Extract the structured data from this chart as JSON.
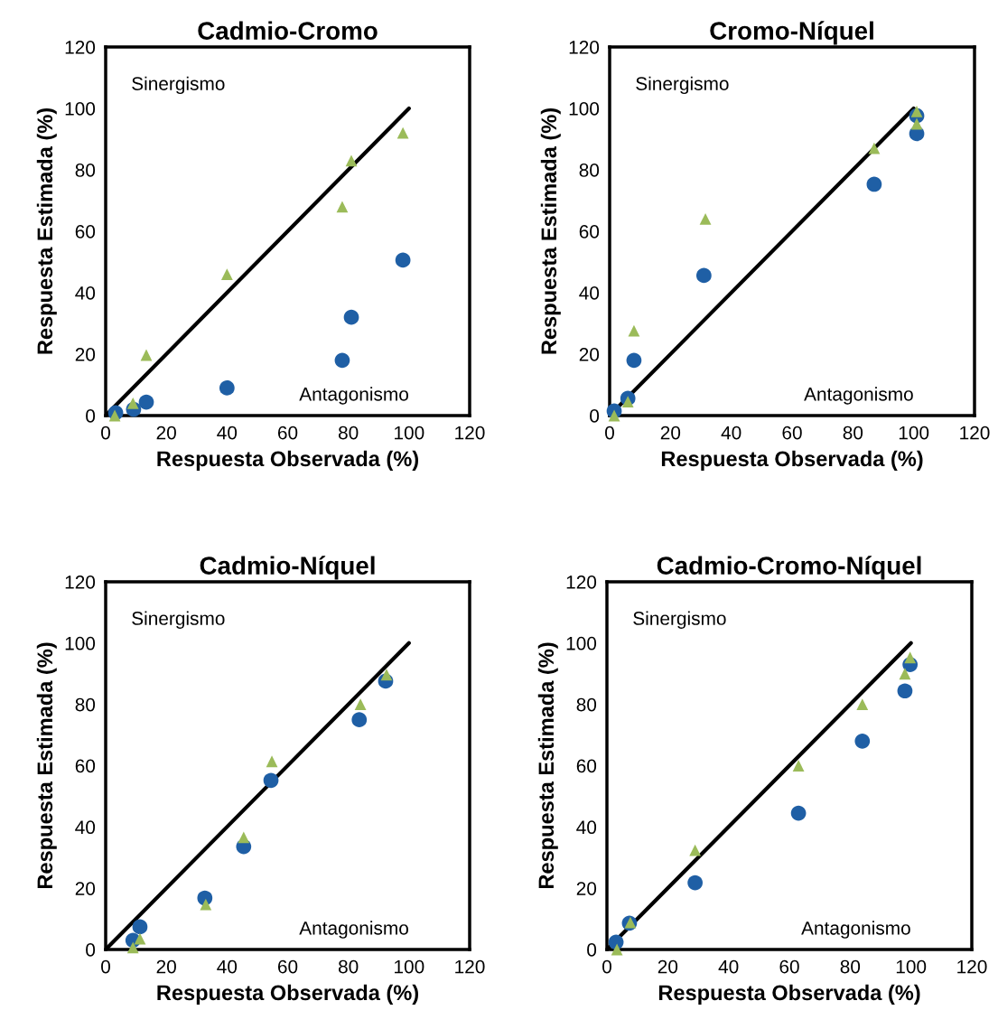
{
  "chart_data": [
    {
      "type": "scatter",
      "title": "Cadmio-Cromo",
      "xlabel": "Respuesta Observada (%)",
      "ylabel": "Respuesta Estimada (%)",
      "xlim": [
        0,
        120
      ],
      "ylim": [
        0,
        120
      ],
      "xticks": [
        0,
        20,
        40,
        60,
        80,
        100,
        120
      ],
      "yticks": [
        0,
        20,
        40,
        60,
        80,
        100,
        120
      ],
      "grid": false,
      "legend": false,
      "annotations": [
        "Sinergismo",
        "Antagonismo"
      ],
      "series": [
        {
          "type": "line",
          "color": "#000000",
          "x": [
            0,
            100
          ],
          "values": [
            0,
            100
          ],
          "marker": "none",
          "line_style": "solid"
        },
        {
          "type": "scatter",
          "color": "#9bbb59",
          "marker": "triangle",
          "x": [
            3,
            9,
            13.4,
            40,
            78,
            81,
            98
          ],
          "values": [
            0,
            4,
            19.7,
            46,
            68,
            83,
            92
          ]
        },
        {
          "type": "scatter",
          "color": "#1f5fa5",
          "marker": "circle",
          "x": [
            3.3,
            9.2,
            13.4,
            40,
            78,
            81,
            98
          ],
          "values": [
            0.9,
            2,
            4.4,
            9,
            18,
            32,
            50.6
          ]
        }
      ]
    },
    {
      "type": "scatter",
      "title": "Cromo-Níquel",
      "xlabel": "Respuesta Observada (%)",
      "ylabel": "Respuesta Estimada (%)",
      "xlim": [
        0,
        120
      ],
      "ylim": [
        0,
        120
      ],
      "xticks": [
        0,
        20,
        40,
        60,
        80,
        100,
        120
      ],
      "yticks": [
        0,
        20,
        40,
        60,
        80,
        100,
        120
      ],
      "grid": false,
      "legend": false,
      "annotations": [
        "Sinergismo",
        "Antagonismo"
      ],
      "series": [
        {
          "type": "line",
          "color": "#000000",
          "x": [
            0,
            100
          ],
          "values": [
            0,
            100
          ],
          "marker": "none",
          "line_style": "solid"
        },
        {
          "type": "scatter",
          "color": "#9bbb59",
          "marker": "triangle",
          "x": [
            1.5,
            6,
            8,
            31.5,
            87,
            101,
            101
          ],
          "values": [
            0,
            4.5,
            27.6,
            64,
            87,
            99,
            95
          ]
        },
        {
          "type": "scatter",
          "color": "#1f5fa5",
          "marker": "circle",
          "x": [
            1.5,
            6,
            8,
            31,
            87,
            101,
            101
          ],
          "values": [
            1.5,
            5.6,
            18,
            45.6,
            75.3,
            97.6,
            91.8
          ]
        }
      ]
    },
    {
      "type": "scatter",
      "title": "Cadmio-Níquel",
      "xlabel": "Respuesta Observada (%)",
      "ylabel": "Respuesta Estimada (%)",
      "xlim": [
        0,
        120
      ],
      "ylim": [
        0,
        120
      ],
      "xticks": [
        0,
        20,
        40,
        60,
        80,
        100,
        120
      ],
      "yticks": [
        0,
        20,
        40,
        60,
        80,
        100,
        120
      ],
      "grid": false,
      "legend": false,
      "annotations": [
        "Sinergismo",
        "Antagonismo"
      ],
      "series": [
        {
          "type": "line",
          "color": "#000000",
          "x": [
            0,
            100
          ],
          "values": [
            0,
            100
          ],
          "marker": "none",
          "line_style": "solid"
        },
        {
          "type": "scatter",
          "color": "#9bbb59",
          "marker": "triangle",
          "x": [
            9,
            11.3,
            33,
            45.5,
            54.8,
            84,
            92.6
          ],
          "values": [
            0.6,
            3.5,
            14.7,
            36.6,
            61.4,
            80,
            89.7
          ]
        },
        {
          "type": "scatter",
          "color": "#1f5fa5",
          "marker": "circle",
          "x": [
            9,
            11.3,
            32.7,
            45.5,
            54.5,
            83.6,
            92.3
          ],
          "values": [
            3,
            7.4,
            16.8,
            33.6,
            55.2,
            75,
            87.6
          ]
        }
      ]
    },
    {
      "type": "scatter",
      "title": "Cadmio-Cromo-Níquel",
      "xlabel": "Respuesta Observada (%)",
      "ylabel": "Respuesta Estimada (%)",
      "xlim": [
        0,
        120
      ],
      "ylim": [
        0,
        120
      ],
      "xticks": [
        0,
        20,
        40,
        60,
        80,
        100,
        120
      ],
      "yticks": [
        0,
        20,
        40,
        60,
        80,
        100,
        120
      ],
      "grid": false,
      "legend": false,
      "annotations": [
        "Sinergismo",
        "Antagonismo"
      ],
      "series": [
        {
          "type": "line",
          "color": "#000000",
          "x": [
            0,
            100
          ],
          "values": [
            0,
            100
          ],
          "marker": "none",
          "line_style": "solid"
        },
        {
          "type": "scatter",
          "color": "#9bbb59",
          "marker": "triangle",
          "x": [
            3.3,
            7.7,
            29,
            63,
            84,
            98,
            99.7
          ],
          "values": [
            0,
            8.8,
            32.4,
            60,
            80,
            90,
            95.3
          ]
        },
        {
          "type": "scatter",
          "color": "#1f5fa5",
          "marker": "circle",
          "x": [
            3,
            7.4,
            29,
            63,
            84,
            98,
            99.7
          ],
          "values": [
            2.4,
            8.6,
            21.8,
            44.5,
            68,
            84.4,
            93
          ]
        }
      ]
    }
  ]
}
